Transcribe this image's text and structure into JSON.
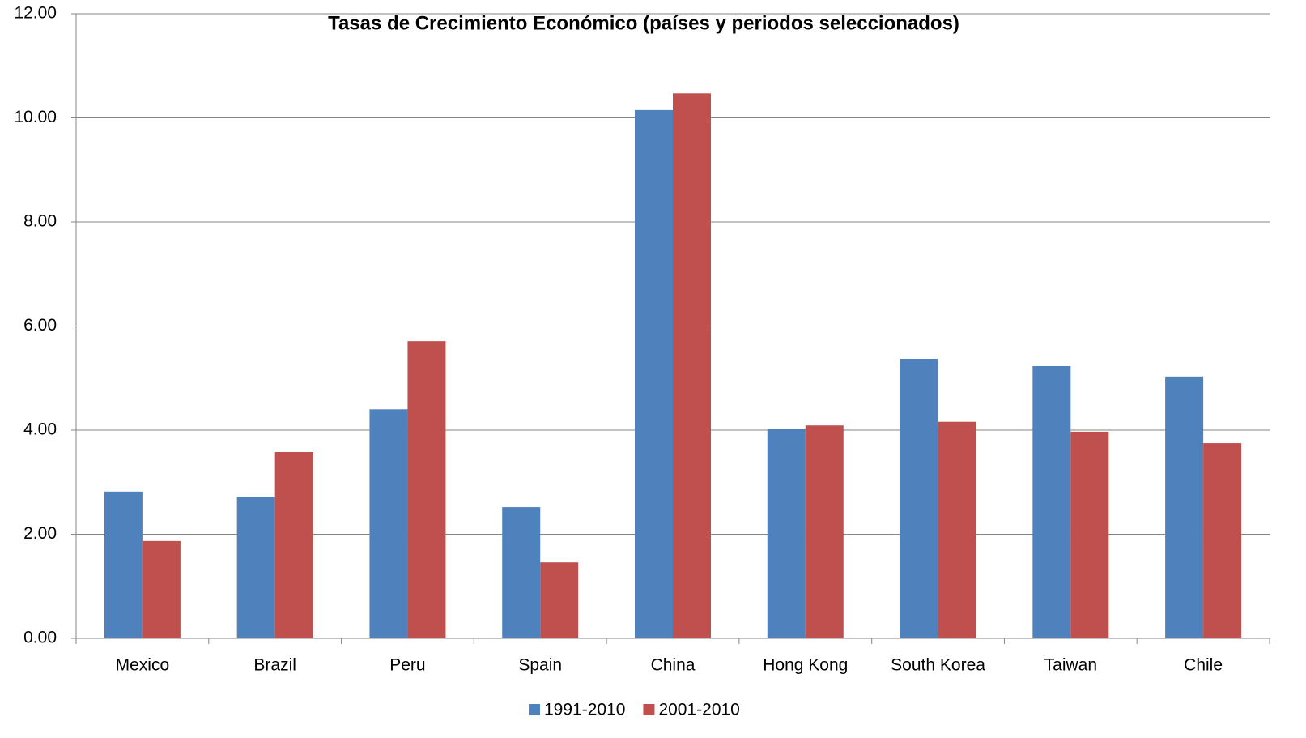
{
  "chart_data": {
    "type": "bar",
    "title": "Tasas de Crecimiento Económico (países y periodos seleccionados)",
    "categories": [
      "Mexico",
      "Brazil",
      "Peru",
      "Spain",
      "China",
      "Hong Kong",
      "South Korea",
      "Taiwan",
      "Chile"
    ],
    "series": [
      {
        "name": "1991-2010",
        "color": "#4f81bd",
        "values": [
          2.82,
          2.72,
          4.4,
          2.52,
          10.15,
          4.03,
          5.37,
          5.23,
          5.03
        ]
      },
      {
        "name": "2001-2010",
        "color": "#c0504d",
        "values": [
          1.87,
          3.58,
          5.71,
          1.46,
          10.47,
          4.09,
          4.16,
          3.97,
          3.75
        ]
      }
    ],
    "ylim": [
      0,
      12
    ],
    "yticks": [
      {
        "value": 0,
        "label": "0.00"
      },
      {
        "value": 2,
        "label": "2.00"
      },
      {
        "value": 4,
        "label": "4.00"
      },
      {
        "value": 6,
        "label": "6.00"
      },
      {
        "value": 8,
        "label": "8.00"
      },
      {
        "value": 10,
        "label": "10.00"
      },
      {
        "value": 12,
        "label": "12.00"
      }
    ],
    "grid": true,
    "legend": "bottom"
  }
}
